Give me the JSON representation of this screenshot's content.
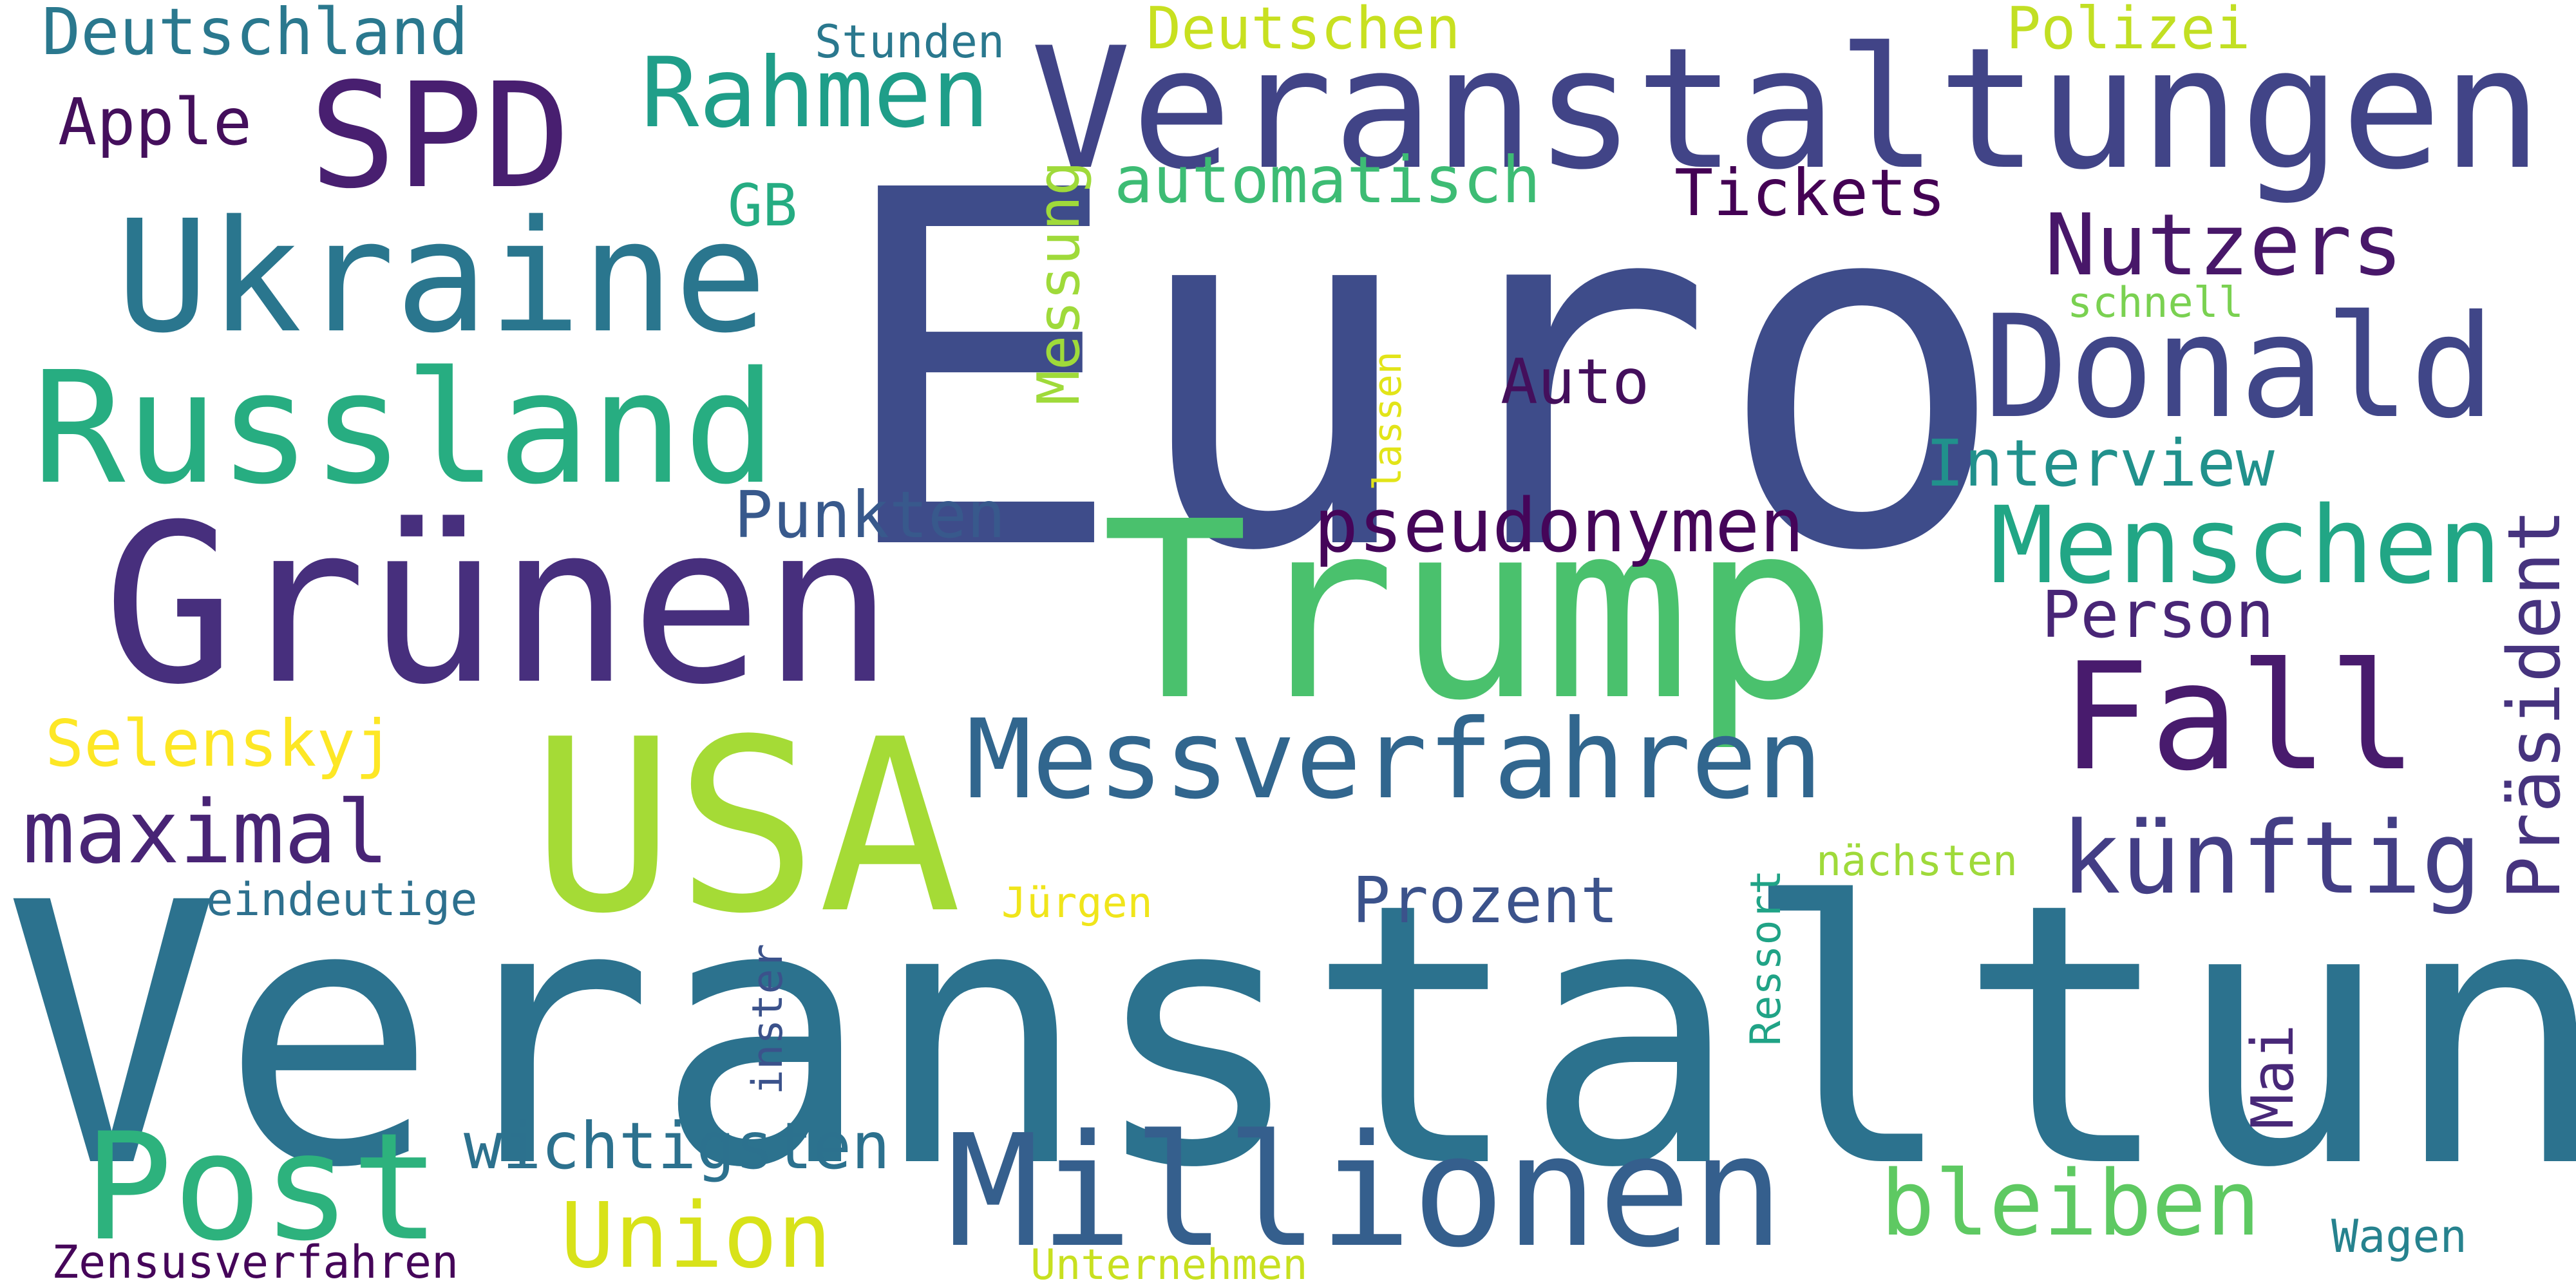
{
  "words": [
    {
      "text": "Euro",
      "color": "#3e4c8a"
    },
    {
      "text": "Veranstaltung",
      "color": "#2c728e"
    },
    {
      "text": "Trump",
      "color": "#4ac16d"
    },
    {
      "text": "Grünen",
      "color": "#472f7d"
    },
    {
      "text": "USA",
      "color": "#a5db36"
    },
    {
      "text": "Veranstaltungen",
      "color": "#414487"
    },
    {
      "text": "Millionen",
      "color": "#355f8d"
    },
    {
      "text": "Russland",
      "color": "#27ad81"
    },
    {
      "text": "Ukraine",
      "color": "#2a768e"
    },
    {
      "text": "Donald",
      "color": "#404688"
    },
    {
      "text": "Fall",
      "color": "#481b6d"
    },
    {
      "text": "SPD",
      "color": "#481f70"
    },
    {
      "text": "Messverfahren",
      "color": "#31668e"
    },
    {
      "text": "Post",
      "color": "#2db27d"
    },
    {
      "text": "Menschen",
      "color": "#21a685"
    },
    {
      "text": "künftig",
      "color": "#433e85"
    },
    {
      "text": "Rahmen",
      "color": "#1f9e89"
    },
    {
      "text": "maximal",
      "color": "#482475"
    },
    {
      "text": "Nutzers",
      "color": "#481769"
    },
    {
      "text": "pseudonymen",
      "color": "#450559"
    },
    {
      "text": "bleiben",
      "color": "#5ec962"
    },
    {
      "text": "Union",
      "color": "#d8e219"
    },
    {
      "text": "wichtigsten",
      "color": "#2c718e"
    },
    {
      "text": "Präsident",
      "color": "#46337e"
    },
    {
      "text": "automatisch",
      "color": "#3dbc74"
    },
    {
      "text": "Interview",
      "color": "#21918c"
    },
    {
      "text": "Deutschland",
      "color": "#2a788e"
    },
    {
      "text": "Tickets",
      "color": "#440154"
    },
    {
      "text": "Punkten",
      "color": "#38598c"
    },
    {
      "text": "Prozent",
      "color": "#3b528b"
    },
    {
      "text": "Selenskyj",
      "color": "#fde725"
    },
    {
      "text": "Person",
      "color": "#482576"
    },
    {
      "text": "Apple",
      "color": "#440f5c"
    },
    {
      "text": "Messung",
      "color": "#9fda3a"
    },
    {
      "text": "Deutschen",
      "color": "#c8e020"
    },
    {
      "text": "Polizei",
      "color": "#c2df23"
    },
    {
      "text": "Auto",
      "color": "#440f5c"
    },
    {
      "text": "GB",
      "color": "#25ac82"
    },
    {
      "text": "Zensusverfahren",
      "color": "#450559"
    },
    {
      "text": "eindeutige",
      "color": "#2d708e"
    },
    {
      "text": "Mai",
      "color": "#482878"
    },
    {
      "text": "Ressort",
      "color": "#20a386"
    },
    {
      "text": "inster",
      "color": "#3b528b"
    },
    {
      "text": "Stunden",
      "color": "#2a788e"
    },
    {
      "text": "Wagen",
      "color": "#26828e"
    },
    {
      "text": "Unternehmen",
      "color": "#c8e020"
    },
    {
      "text": "nächsten",
      "color": "#9fda3a"
    },
    {
      "text": "Jürgen",
      "color": "#f0e51a"
    },
    {
      "text": "schnell",
      "color": "#7ad151"
    },
    {
      "text": "lassen",
      "color": "#e2e418"
    }
  ]
}
